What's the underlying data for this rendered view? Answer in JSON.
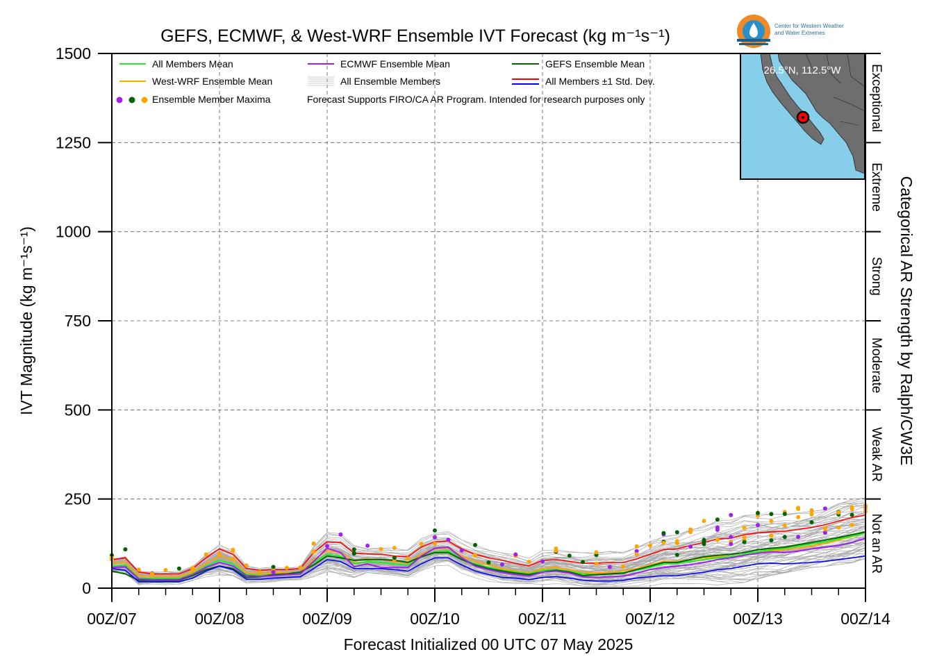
{
  "chart_data": {
    "type": "line",
    "title": "GEFS, ECMWF, & West-WRF Ensemble IVT Forecast (kg m⁻¹s⁻¹)",
    "xlabel": "Forecast Initialized 00 UTC 07 May 2025",
    "ylabel": "IVT Magnitude (kg m⁻¹s⁻¹)",
    "right_label": "Categorical AR Strength by Ralph/CW3E",
    "ylim": [
      0,
      1500
    ],
    "xlim_hours": [
      0,
      168
    ],
    "yticks": [
      0,
      250,
      500,
      750,
      1000,
      1250,
      1500
    ],
    "xticks": [
      {
        "h": 0,
        "label": "00Z/07"
      },
      {
        "h": 24,
        "label": "00Z/08"
      },
      {
        "h": 48,
        "label": "00Z/09"
      },
      {
        "h": 72,
        "label": "00Z/10"
      },
      {
        "h": 96,
        "label": "00Z/11"
      },
      {
        "h": 120,
        "label": "00Z/12"
      },
      {
        "h": 144,
        "label": "00Z/13"
      },
      {
        "h": 168,
        "label": "00Z/14"
      }
    ],
    "grid": true,
    "categories": [
      {
        "label": "Not an AR",
        "from": 0,
        "to": 250
      },
      {
        "label": "Weak AR",
        "from": 250,
        "to": 500
      },
      {
        "label": "Moderate",
        "from": 500,
        "to": 750
      },
      {
        "label": "Strong",
        "from": 750,
        "to": 1000
      },
      {
        "label": "Extreme",
        "from": 1000,
        "to": 1250
      },
      {
        "label": "Exceptional",
        "from": 1250,
        "to": 1500
      }
    ],
    "legend": [
      {
        "label": "All Members Mean",
        "color": "#22ee22",
        "kind": "line"
      },
      {
        "label": "ECMWF Ensemble Mean",
        "color": "#a020f0",
        "kind": "line"
      },
      {
        "label": "GEFS Ensemble Mean",
        "color": "#006400",
        "kind": "line"
      },
      {
        "label": "West-WRF Ensemble Mean",
        "color": "#ffa500",
        "kind": "line"
      },
      {
        "label": "All Ensemble Members",
        "color": "#aaaaaa",
        "kind": "multiline"
      },
      {
        "label": "All Members ±1 Std. Dev.",
        "color_upper": "#ff0000",
        "color_lower": "#0000ff",
        "kind": "pair"
      },
      {
        "label": "Ensemble Member Maxima",
        "kind": "dots"
      }
    ],
    "note": "Forecast Supports FIRO/CA AR Program. Intended for research purposes only",
    "x": [
      0,
      3,
      6,
      9,
      12,
      15,
      18,
      21,
      24,
      27,
      30,
      33,
      36,
      39,
      42,
      45,
      48,
      51,
      54,
      57,
      60,
      63,
      66,
      69,
      72,
      75,
      78,
      81,
      84,
      87,
      90,
      93,
      96,
      99,
      102,
      105,
      108,
      111,
      114,
      117,
      120,
      123,
      126,
      129,
      132,
      135,
      138,
      141,
      144,
      147,
      150,
      153,
      156,
      159,
      162,
      165,
      168
    ],
    "series": [
      {
        "name": "All Members +1 Std. Dev.",
        "color": "#ff0000",
        "width": 1.6,
        "values": [
          80,
          85,
          45,
          40,
          40,
          40,
          55,
          85,
          110,
          95,
          55,
          50,
          52,
          52,
          55,
          100,
          130,
          128,
          98,
          96,
          95,
          90,
          88,
          115,
          130,
          132,
          110,
          95,
          85,
          78,
          70,
          62,
          78,
          80,
          75,
          70,
          70,
          72,
          72,
          82,
          95,
          108,
          110,
          120,
          128,
          138,
          140,
          150,
          155,
          158,
          160,
          165,
          170,
          178,
          188,
          198,
          205
        ]
      },
      {
        "name": "West-WRF Ensemble Mean",
        "color": "#ffa500",
        "width": 2,
        "values": [
          70,
          72,
          35,
          32,
          32,
          32,
          45,
          70,
          90,
          80,
          42,
          40,
          42,
          43,
          45,
          80,
          105,
          100,
          75,
          82,
          80,
          75,
          70,
          95,
          110,
          112,
          90,
          75,
          65,
          55,
          48,
          43,
          55,
          58,
          52,
          45,
          42,
          45,
          48,
          55,
          65,
          75,
          75,
          80,
          85,
          88,
          88,
          95,
          100,
          105,
          108,
          112,
          118,
          125,
          135,
          145,
          155
        ]
      },
      {
        "name": "All Members Mean",
        "color": "#22ee22",
        "width": 2,
        "values": [
          62,
          65,
          28,
          27,
          27,
          27,
          40,
          62,
          78,
          68,
          38,
          36,
          38,
          40,
          42,
          72,
          95,
          90,
          70,
          74,
          72,
          68,
          64,
          88,
          102,
          104,
          82,
          68,
          58,
          50,
          45,
          40,
          50,
          52,
          47,
          40,
          38,
          40,
          43,
          50,
          58,
          68,
          70,
          75,
          80,
          85,
          88,
          95,
          102,
          108,
          112,
          118,
          124,
          130,
          138,
          146,
          155
        ]
      },
      {
        "name": "GEFS Ensemble Mean",
        "color": "#006400",
        "width": 2,
        "values": [
          48,
          40,
          22,
          22,
          22,
          22,
          35,
          52,
          62,
          55,
          30,
          32,
          38,
          40,
          45,
          65,
          90,
          85,
          78,
          80,
          80,
          78,
          72,
          88,
          100,
          100,
          80,
          65,
          55,
          48,
          42,
          38,
          45,
          50,
          45,
          35,
          38,
          40,
          42,
          52,
          62,
          72,
          72,
          80,
          88,
          92,
          95,
          100,
          108,
          112,
          115,
          122,
          128,
          135,
          142,
          150,
          158
        ]
      },
      {
        "name": "ECMWF Ensemble Mean",
        "color": "#a020f0",
        "width": 2,
        "values": [
          58,
          60,
          26,
          24,
          24,
          24,
          38,
          58,
          72,
          62,
          35,
          33,
          35,
          38,
          40,
          75,
          112,
          100,
          60,
          68,
          58,
          58,
          58,
          90,
          112,
          115,
          85,
          62,
          52,
          44,
          38,
          34,
          45,
          48,
          42,
          32,
          30,
          32,
          34,
          42,
          52,
          58,
          62,
          66,
          72,
          80,
          85,
          92,
          98,
          102,
          100,
          104,
          110,
          115,
          120,
          128,
          140
        ]
      },
      {
        "name": "All Members -1 Std. Dev.",
        "color": "#0000ff",
        "width": 1.6,
        "values": [
          55,
          50,
          18,
          18,
          18,
          18,
          28,
          48,
          62,
          52,
          25,
          25,
          28,
          30,
          32,
          55,
          80,
          75,
          55,
          55,
          55,
          52,
          48,
          68,
          85,
          85,
          65,
          48,
          38,
          30,
          28,
          24,
          30,
          32,
          28,
          22,
          20,
          20,
          22,
          28,
          32,
          35,
          35,
          40,
          45,
          52,
          55,
          62,
          68,
          70,
          68,
          70,
          72,
          75,
          80,
          85,
          90
        ]
      }
    ]
  }
}
